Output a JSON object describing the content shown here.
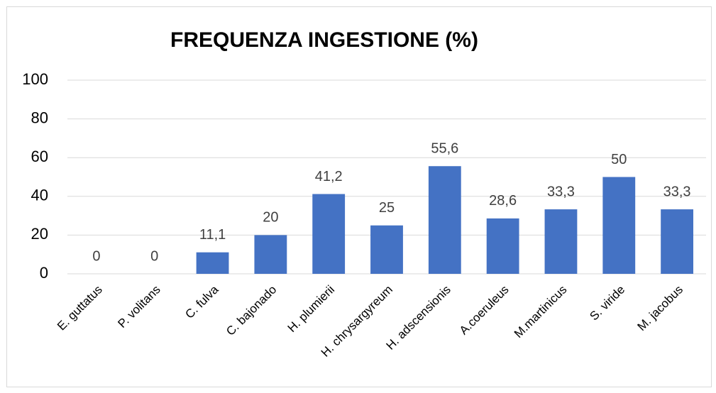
{
  "chart_data": {
    "type": "bar",
    "title": "FREQUENZA INGESTIONE (%)",
    "categories": [
      "E. guttatus",
      "P. volitans",
      "C. fulva",
      "C. bajonado",
      "H. plumierii",
      "H. chrysargyreum",
      "H. adscensionis",
      "A.coeruleus",
      "M.martinicus",
      "S. viride",
      "M. jacobus"
    ],
    "values": [
      0,
      0,
      11.1,
      20,
      41.2,
      25,
      55.6,
      28.6,
      33.3,
      50,
      33.3
    ],
    "value_labels": [
      "0",
      "0",
      "11,1",
      "20",
      "41,2",
      "25",
      "55,6",
      "28,6",
      "33,3",
      "50",
      "33,3"
    ],
    "color": "#4472c4",
    "ylim": [
      0,
      100
    ],
    "yticks": [
      0,
      20,
      40,
      60,
      80,
      100
    ],
    "grid": true
  }
}
